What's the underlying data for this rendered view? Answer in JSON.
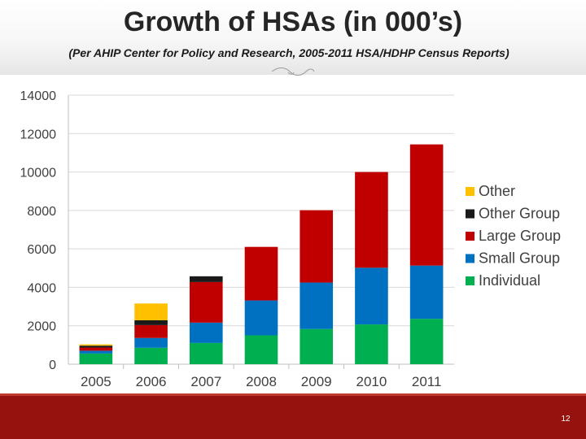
{
  "slide": {
    "title": "Growth of HSAs (in 000’s)",
    "subtitle": "(Per AHIP Center for Policy and Research, 2005-2011 HSA/HDHP Census Reports)",
    "page_number": "12",
    "footer_color": "#95120f"
  },
  "chart_data": {
    "type": "bar",
    "stacked": true,
    "title": "",
    "xlabel": "",
    "ylabel": "",
    "categories": [
      "2005",
      "2006",
      "2007",
      "2008",
      "2009",
      "2010",
      "2011"
    ],
    "ylim": [
      0,
      14000
    ],
    "yticks": [
      0,
      2000,
      4000,
      6000,
      8000,
      10000,
      12000,
      14000
    ],
    "grid": true,
    "legend_position": "right",
    "series": [
      {
        "name": "Individual",
        "color": "#00b050",
        "values": [
          556,
          855,
          1106,
          1502,
          1832,
          2070,
          2362
        ]
      },
      {
        "name": "Small Group",
        "color": "#0070c0",
        "values": [
          147,
          510,
          1057,
          1815,
          2416,
          2949,
          2769
        ]
      },
      {
        "name": "Large Group",
        "color": "#c00000",
        "values": [
          162,
          670,
          2113,
          2787,
          3764,
          4980,
          6305
        ]
      },
      {
        "name": "Other Group",
        "color": "#1a1a1a",
        "values": [
          99,
          250,
          298,
          0,
          0,
          0,
          0
        ]
      },
      {
        "name": "Other",
        "color": "#ffc000",
        "values": [
          67,
          875,
          0,
          0,
          0,
          0,
          0
        ]
      }
    ],
    "legend_order": [
      "Other",
      "Other Group",
      "Large Group",
      "Small Group",
      "Individual"
    ]
  }
}
